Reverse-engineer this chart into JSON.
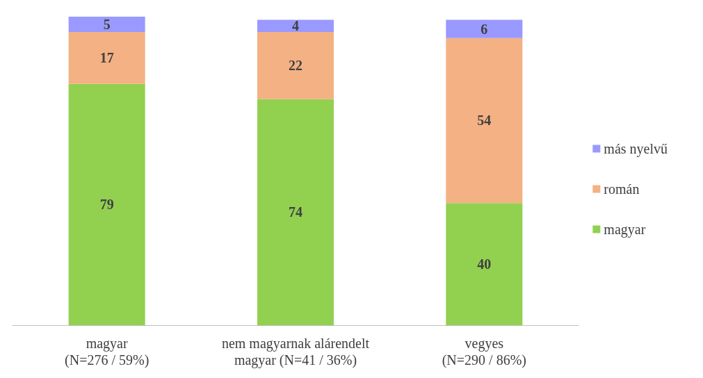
{
  "chart_data": {
    "type": "bar",
    "stacked": true,
    "data_labels": true,
    "legend": "right",
    "categories": [
      "magyar\n(N=276 / 59%)",
      "nem magyarnak alárendelt\nmagyar (N=41 / 36%)",
      "vegyes\n(N=290 / 86%)"
    ],
    "series": [
      {
        "name": "magyar",
        "color": "#92d050",
        "values": [
          79,
          74,
          40
        ]
      },
      {
        "name": "román",
        "color": "#f4b183",
        "values": [
          17,
          22,
          54
        ]
      },
      {
        "name": "más nyelvű",
        "color": "#9999ff",
        "values": [
          5,
          4,
          6
        ]
      }
    ]
  }
}
